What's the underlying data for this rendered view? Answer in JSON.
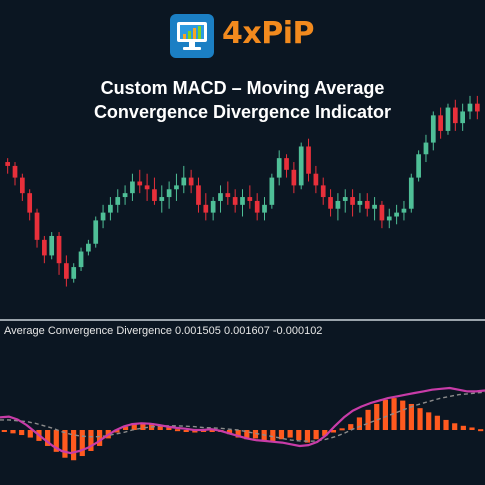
{
  "logo": {
    "text": "4xPiP",
    "icon": "monitor-chart-icon"
  },
  "title": {
    "line1": "Custom MACD – Moving Average",
    "line2": "Convergence Divergence Indicator"
  },
  "indicator": {
    "label": "Average Convergence Divergence 0.001505 0.001607 -0.000102"
  },
  "colors": {
    "background": "#0b1622",
    "bull": "#4fbf97",
    "bear": "#e8303b",
    "histogram": "#ff5a1f",
    "macd_line": "#c83ca8",
    "signal_line": "#8c8c8c",
    "logo_text": "#f28a1e",
    "logo_box": "#1b7fc4"
  },
  "chart_data": [
    {
      "type": "candlestick",
      "title": "",
      "ylim": [
        0,
        100
      ],
      "candles": [
        [
          70,
          72,
          64,
          68
        ],
        [
          68,
          70,
          58,
          62
        ],
        [
          62,
          64,
          50,
          54
        ],
        [
          54,
          56,
          40,
          44
        ],
        [
          44,
          46,
          26,
          30
        ],
        [
          30,
          32,
          18,
          22
        ],
        [
          22,
          34,
          20,
          32
        ],
        [
          32,
          34,
          12,
          18
        ],
        [
          18,
          22,
          6,
          10
        ],
        [
          10,
          18,
          8,
          16
        ],
        [
          16,
          26,
          14,
          24
        ],
        [
          24,
          30,
          22,
          28
        ],
        [
          28,
          42,
          26,
          40
        ],
        [
          40,
          48,
          36,
          44
        ],
        [
          44,
          52,
          40,
          48
        ],
        [
          48,
          56,
          44,
          52
        ],
        [
          52,
          58,
          48,
          54
        ],
        [
          54,
          64,
          50,
          60
        ],
        [
          60,
          66,
          54,
          58
        ],
        [
          58,
          64,
          50,
          56
        ],
        [
          56,
          62,
          48,
          50
        ],
        [
          50,
          58,
          44,
          52
        ],
        [
          52,
          60,
          46,
          56
        ],
        [
          56,
          64,
          50,
          58
        ],
        [
          58,
          68,
          54,
          62
        ],
        [
          62,
          66,
          54,
          58
        ],
        [
          58,
          62,
          44,
          48
        ],
        [
          48,
          54,
          40,
          44
        ],
        [
          44,
          52,
          40,
          50
        ],
        [
          50,
          58,
          44,
          54
        ],
        [
          54,
          60,
          48,
          52
        ],
        [
          52,
          56,
          44,
          48
        ],
        [
          48,
          56,
          42,
          52
        ],
        [
          52,
          58,
          46,
          50
        ],
        [
          50,
          54,
          40,
          44
        ],
        [
          44,
          52,
          40,
          48
        ],
        [
          48,
          64,
          46,
          62
        ],
        [
          62,
          76,
          58,
          72
        ],
        [
          72,
          74,
          62,
          66
        ],
        [
          66,
          70,
          54,
          58
        ],
        [
          58,
          80,
          56,
          78
        ],
        [
          78,
          82,
          60,
          64
        ],
        [
          64,
          68,
          54,
          58
        ],
        [
          58,
          62,
          48,
          52
        ],
        [
          52,
          56,
          42,
          46
        ],
        [
          46,
          54,
          40,
          50
        ],
        [
          50,
          56,
          44,
          52
        ],
        [
          52,
          56,
          42,
          48
        ],
        [
          48,
          54,
          44,
          50
        ],
        [
          50,
          54,
          42,
          46
        ],
        [
          46,
          52,
          40,
          48
        ],
        [
          48,
          50,
          36,
          40
        ],
        [
          40,
          46,
          36,
          42
        ],
        [
          42,
          48,
          38,
          44
        ],
        [
          44,
          50,
          40,
          46
        ],
        [
          46,
          64,
          44,
          62
        ],
        [
          62,
          76,
          60,
          74
        ],
        [
          74,
          84,
          70,
          80
        ],
        [
          80,
          96,
          76,
          94
        ],
        [
          94,
          98,
          82,
          86
        ],
        [
          86,
          100,
          84,
          98
        ],
        [
          98,
          102,
          86,
          90
        ],
        [
          90,
          100,
          86,
          96
        ],
        [
          96,
          104,
          92,
          100
        ],
        [
          100,
          104,
          92,
          96
        ]
      ]
    },
    {
      "type": "bar",
      "title": "",
      "ylim": [
        -1,
        1
      ],
      "histogram": [
        -0.04,
        -0.08,
        -0.12,
        -0.18,
        -0.26,
        -0.38,
        -0.52,
        -0.66,
        -0.72,
        -0.62,
        -0.5,
        -0.38,
        -0.2,
        -0.06,
        0.08,
        0.16,
        0.18,
        0.16,
        0.12,
        0.06,
        0.02,
        -0.02,
        -0.06,
        -0.04,
        0.0,
        -0.04,
        -0.1,
        -0.18,
        -0.22,
        -0.2,
        -0.24,
        -0.28,
        -0.22,
        -0.18,
        -0.24,
        -0.3,
        -0.22,
        -0.14,
        -0.06,
        0.04,
        0.14,
        0.3,
        0.48,
        0.62,
        0.72,
        0.76,
        0.7,
        0.62,
        0.52,
        0.42,
        0.34,
        0.24,
        0.16,
        0.1,
        0.06,
        0.02
      ],
      "macd": [
        0.3,
        0.32,
        0.25,
        0.12,
        -0.05,
        -0.22,
        -0.38,
        -0.5,
        -0.55,
        -0.5,
        -0.42,
        -0.3,
        -0.15,
        -0.02,
        0.08,
        0.14,
        0.16,
        0.15,
        0.12,
        0.08,
        0.05,
        0.03,
        0.0,
        0.0,
        0.02,
        -0.02,
        -0.08,
        -0.14,
        -0.2,
        -0.24,
        -0.26,
        -0.28,
        -0.3,
        -0.34,
        -0.38,
        -0.36,
        -0.28,
        -0.12,
        0.1,
        0.3,
        0.46,
        0.56,
        0.64,
        0.7,
        0.76,
        0.8,
        0.84,
        0.88,
        0.92,
        0.96,
        0.98,
        1.0,
        0.96,
        0.92,
        0.92,
        0.94
      ],
      "signal": [
        0.24,
        0.24,
        0.22,
        0.2,
        0.16,
        0.1,
        0.04,
        -0.04,
        -0.1,
        -0.14,
        -0.16,
        -0.16,
        -0.14,
        -0.1,
        -0.06,
        0.0,
        0.04,
        0.07,
        0.09,
        0.1,
        0.1,
        0.09,
        0.08,
        0.06,
        0.05,
        0.04,
        0.02,
        0.0,
        -0.04,
        -0.08,
        -0.12,
        -0.16,
        -0.2,
        -0.24,
        -0.26,
        -0.27,
        -0.26,
        -0.22,
        -0.16,
        -0.08,
        0.02,
        0.1,
        0.18,
        0.26,
        0.34,
        0.42,
        0.5,
        0.58,
        0.64,
        0.7,
        0.76,
        0.8,
        0.84,
        0.86,
        0.88,
        0.9
      ]
    }
  ]
}
